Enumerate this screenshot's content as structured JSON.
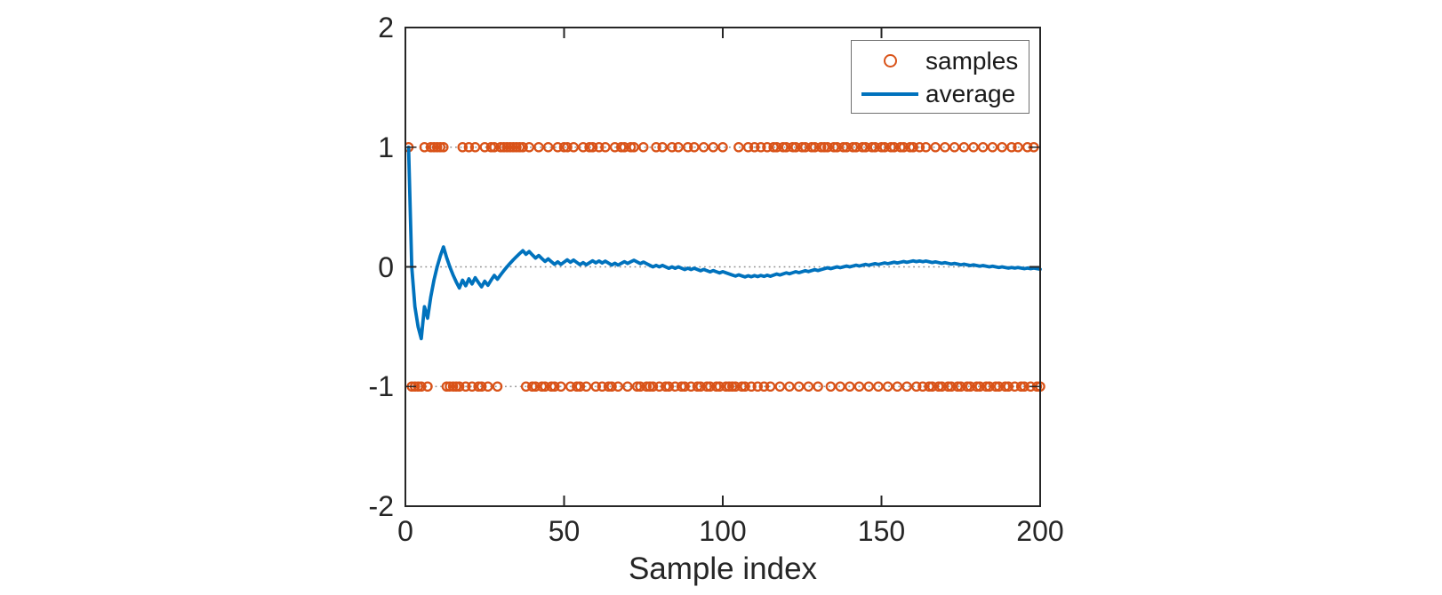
{
  "figure": {
    "background": "#ffffff"
  },
  "axes": {
    "color": "#262626",
    "tick_label_color": "#262626",
    "reference_line_color": "#8f8f8f"
  },
  "legend": {
    "position": "top-right-inside",
    "items": [
      {
        "label": "samples",
        "marker": "circle",
        "color": "#D95319"
      },
      {
        "label": "average",
        "marker": "line",
        "color": "#0072BD"
      }
    ]
  },
  "chart_data": {
    "type": "scatter+line",
    "title": "",
    "xlabel": "Sample index",
    "ylabel": "",
    "xlim": [
      0,
      200
    ],
    "ylim": [
      -2,
      2
    ],
    "x_ticks": [
      0,
      50,
      100,
      150,
      200
    ],
    "y_ticks": [
      2,
      1,
      0,
      -1,
      -2
    ],
    "grid": false,
    "reference_lines_y": [
      -1,
      0,
      1
    ],
    "reference_line_style": "dotted",
    "n_samples": 200,
    "x_start": 1,
    "series": [
      {
        "name": "samples",
        "type": "scatter",
        "marker": "o",
        "color": "#D95319",
        "values": [
          1,
          -1,
          -1,
          -1,
          -1,
          1,
          -1,
          1,
          1,
          1,
          1,
          1,
          -1,
          -1,
          -1,
          -1,
          -1,
          1,
          -1,
          1,
          -1,
          1,
          -1,
          -1,
          1,
          -1,
          1,
          1,
          -1,
          1,
          1,
          1,
          1,
          1,
          1,
          1,
          1,
          -1,
          1,
          -1,
          -1,
          1,
          -1,
          -1,
          1,
          -1,
          -1,
          1,
          -1,
          1,
          1,
          -1,
          1,
          -1,
          -1,
          1,
          -1,
          1,
          1,
          -1,
          1,
          -1,
          1,
          -1,
          -1,
          1,
          -1,
          1,
          1,
          -1,
          1,
          1,
          -1,
          -1,
          1,
          -1,
          -1,
          -1,
          1,
          -1,
          1,
          -1,
          -1,
          1,
          -1,
          1,
          -1,
          -1,
          1,
          -1,
          1,
          -1,
          -1,
          1,
          -1,
          -1,
          1,
          -1,
          -1,
          1,
          -1,
          -1,
          -1,
          -1,
          1,
          -1,
          -1,
          1,
          -1,
          1,
          -1,
          1,
          -1,
          1,
          -1,
          1,
          1,
          -1,
          1,
          1,
          -1,
          1,
          1,
          -1,
          1,
          1,
          -1,
          1,
          1,
          -1,
          1,
          1,
          1,
          -1,
          1,
          1,
          -1,
          1,
          1,
          -1,
          1,
          1,
          -1,
          1,
          1,
          -1,
          1,
          1,
          -1,
          1,
          1,
          -1,
          1,
          1,
          -1,
          1,
          1,
          -1,
          1,
          1,
          -1,
          1,
          -1,
          1,
          -1,
          -1,
          1,
          -1,
          -1,
          1,
          -1,
          -1,
          1,
          -1,
          -1,
          1,
          -1,
          -1,
          1,
          -1,
          -1,
          1,
          -1,
          -1,
          1,
          -1,
          -1,
          1,
          -1,
          -1,
          1,
          -1,
          1,
          -1,
          -1,
          1,
          -1,
          1,
          -1,
          -1
        ]
      },
      {
        "name": "average",
        "type": "line",
        "color": "#0072BD",
        "line_width": 3.8,
        "derivation": "cumulative_mean_of_samples"
      }
    ]
  }
}
